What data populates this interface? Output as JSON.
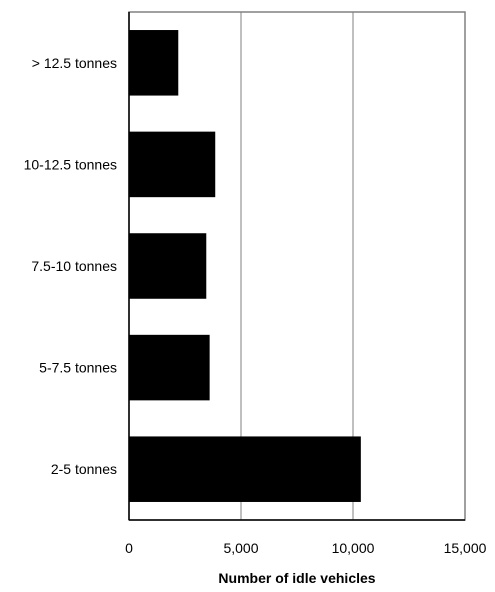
{
  "chart_data": {
    "type": "bar",
    "orientation": "horizontal",
    "categories": [
      "> 12.5 tonnes",
      "10-12.5 tonnes",
      "7.5-10 tonnes",
      "5-7.5 tonnes",
      "2-5 tonnes"
    ],
    "values": [
      2200,
      3850,
      3450,
      3600,
      10350
    ],
    "xlabel": "Number of idle vehicles",
    "ylabel": "",
    "xlim": [
      0,
      15000
    ],
    "xticks": [
      0,
      5000,
      10000,
      15000
    ],
    "xtick_labels": [
      "0",
      "5,000",
      "10,000",
      "15,000"
    ],
    "grid": "vertical",
    "bar_color": "#000000",
    "legend": "none"
  }
}
